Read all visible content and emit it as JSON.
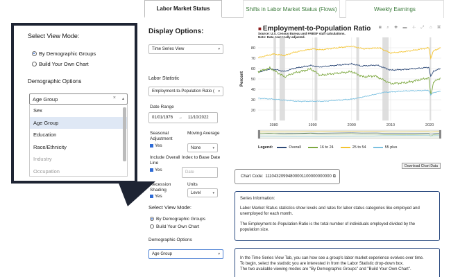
{
  "tabs": [
    {
      "label": "Labor Market Status",
      "active": true
    },
    {
      "label": "Shifts in Labor Market Status (Flows)",
      "active": false
    },
    {
      "label": "Weekly Earnings",
      "active": false
    }
  ],
  "sidebar": {
    "display_title": "Display Options:",
    "view_select": "Time Series View",
    "labor_statistic_label": "Labor Statistic",
    "labor_statistic_value": "Employment-to-Population Ratio (",
    "date_range_label": "Date Range",
    "date_start": "01/01/1976",
    "date_arrow": "→",
    "date_end": "11/10/2022",
    "seasonal_label": "Seasonal Adjustment",
    "seasonal_value": "Yes",
    "moving_avg_label": "Moving Average",
    "moving_avg_value": "None",
    "overall_label": "Include Overall Line",
    "overall_value": "Yes",
    "index_label": "Index to Base Date",
    "index_placeholder": "Date",
    "recession_label": "Recession Shading",
    "recession_value": "Yes",
    "units_label": "Units",
    "units_value": "Level",
    "view_mode_title": "Select View Mode:",
    "view_mode_opt1": "By Demographic Groups",
    "view_mode_opt2": "Build Your Own Chart",
    "demo_options_label": "Demographic Options",
    "demo_select": "Age Group"
  },
  "chart": {
    "title": "Employment-to-Population Ratio",
    "source_line1": "Source: U.S. Census Bureau and FRBSF staff calculations.",
    "source_line2": "Note: Data seasonally adjusted.",
    "toolbar_icons": [
      "camera-icon",
      "zoom-icon",
      "plus-icon",
      "minus-icon",
      "pan-icon",
      "autoscale-icon",
      "reset-icon",
      "download-icon"
    ],
    "toolbar_glyphs": "◙ ⌕ ✚ ▬ ✢ ⤢ ⌂ ▣",
    "ylabel": "Percent",
    "download_label": "Download Chart Data",
    "legend_label": "Legend:",
    "colors": {
      "overall": "#2e4a78",
      "s16_24": "#7da840",
      "s25_54": "#f4c430",
      "s55": "#7ac0e0",
      "recession": "#d8d8d8"
    }
  },
  "chart_data": {
    "type": "line",
    "title": "Employment-to-Population Ratio",
    "xlabel": "",
    "ylabel": "Percent",
    "xlim": [
      1976,
      2023
    ],
    "ylim": [
      10,
      90
    ],
    "x_ticks": [
      1980,
      1990,
      2000,
      2010,
      2020
    ],
    "y_ticks": [
      20,
      30,
      40,
      50,
      60,
      70,
      80
    ],
    "recessions": [
      [
        1980.0,
        1980.6
      ],
      [
        1981.5,
        1982.9
      ],
      [
        1990.5,
        1991.2
      ],
      [
        2001.2,
        2001.9
      ],
      [
        2007.9,
        2009.5
      ],
      [
        2020.1,
        2020.4
      ]
    ],
    "series": [
      {
        "name": "Overall",
        "x": [
          1976,
          1979,
          1980.5,
          1982.8,
          1985,
          1989.5,
          1991.5,
          1995,
          2000,
          2002.5,
          2006.5,
          2010,
          2014,
          2019.8,
          2020.3,
          2021,
          2022.8
        ],
        "values": [
          56.5,
          59.5,
          59,
          57.2,
          60,
          63,
          61.5,
          62.8,
          64.5,
          62.5,
          63.3,
          58.5,
          59.2,
          61.2,
          52,
          57.5,
          60
        ]
      },
      {
        "name": "16 to 24",
        "x": [
          1976,
          1979,
          1982.8,
          1985,
          1989.5,
          1992,
          1995,
          2000,
          2003,
          2006,
          2010,
          2014,
          2019.8,
          2020.3,
          2021,
          2022.8
        ],
        "values": [
          57,
          60.5,
          52,
          55.5,
          59.5,
          53.5,
          55,
          57,
          52,
          53,
          45.5,
          46.5,
          51,
          34,
          47,
          51
        ]
      },
      {
        "name": "25 to 54",
        "x": [
          1976,
          1980,
          1982.8,
          1985,
          1990,
          1992,
          1995,
          2000,
          2003,
          2007,
          2010,
          2014,
          2019.8,
          2020.3,
          2021,
          2022.8
        ],
        "values": [
          70.5,
          74,
          72.5,
          75.5,
          79,
          78,
          79.5,
          81.5,
          79,
          80,
          75,
          76.5,
          80,
          70,
          77,
          80
        ]
      },
      {
        "name": "55 plus",
        "x": [
          1976,
          1980,
          1986,
          1993,
          1996,
          2000,
          2004,
          2008,
          2010,
          2014,
          2019.8,
          2020.3,
          2021,
          2022.8
        ],
        "values": [
          31.5,
          30.5,
          28.5,
          28.5,
          29.5,
          30.5,
          33.5,
          37,
          37.5,
          38.5,
          39,
          34.5,
          37,
          38
        ]
      }
    ]
  },
  "chart_code": {
    "prefix": "Chart Code:",
    "value": "11104320994800001100000000000"
  },
  "info": {
    "heading": "Series Information:",
    "p1": "Labor Market Status statistics show levels and rates for labor status categories like employed and unemployed for each month.",
    "p2": "The Employment-to-Population Ratio is the total number of individuals employed divided by the population size."
  },
  "info2": {
    "p1": "In the Time Series View Tab, you can how see a group's labor market experience evolves over time.",
    "p2": "To begin, select the statistic you are interested in from the Labor Statistic drop-down box.",
    "p3": "The two available viewing modes are \"By Demographic Groups\" and \"Build Your Own Chart\"."
  },
  "zoom": {
    "title": "Select View Mode:",
    "opt1": "By Demographic Groups",
    "opt2": "Build Your Own Chart",
    "demo_label": "Demographic Options",
    "select_value": "Age Group",
    "clear_glyph": "×",
    "arrow_glyph": "▴",
    "items": [
      {
        "label": "Sex",
        "state": "normal"
      },
      {
        "label": "Age Group",
        "state": "selected"
      },
      {
        "label": "Education",
        "state": "normal"
      },
      {
        "label": "Race/Ethnicity",
        "state": "normal"
      },
      {
        "label": "Industry",
        "state": "dim"
      },
      {
        "label": "Occupation",
        "state": "dim"
      }
    ]
  }
}
